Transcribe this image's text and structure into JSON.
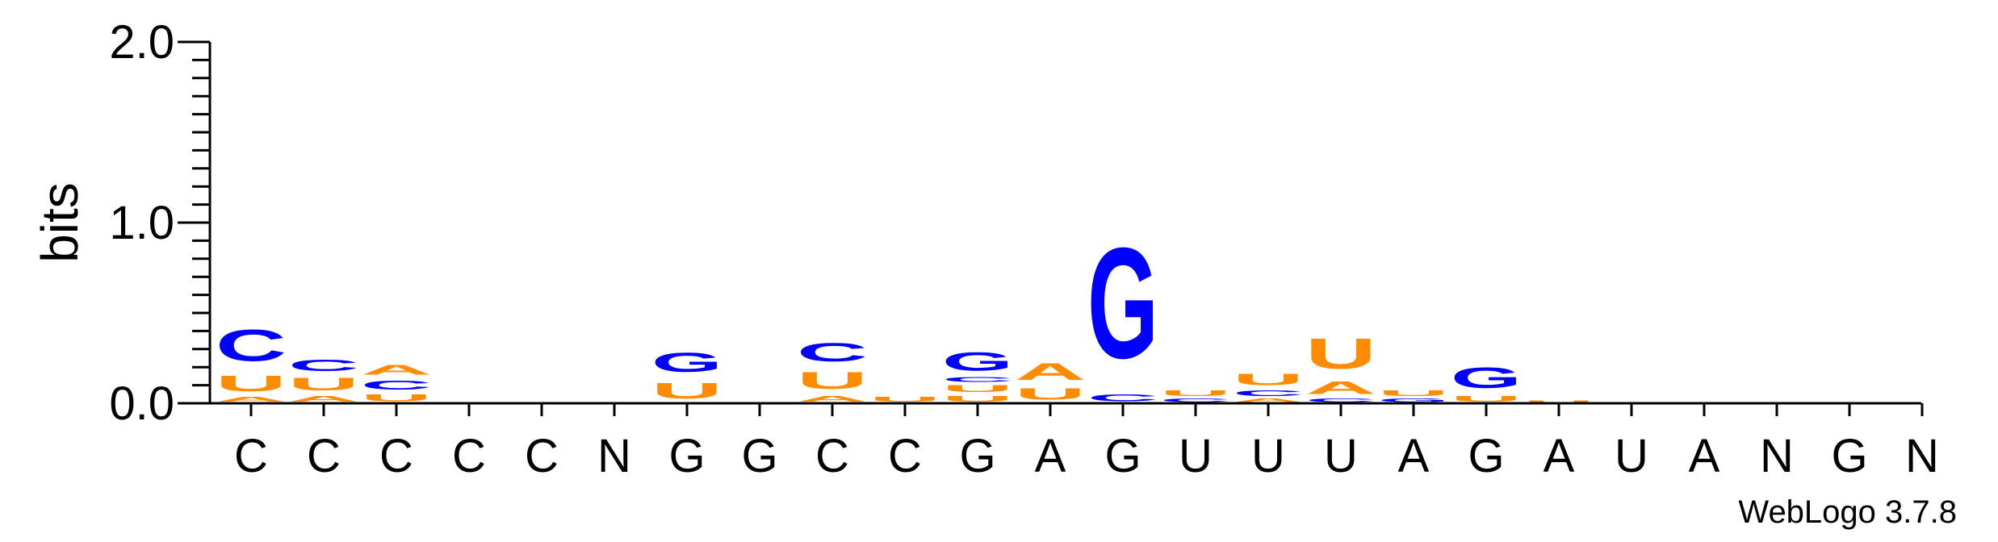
{
  "chart_data": {
    "type": "sequence-logo",
    "ylabel": "bits",
    "ylim": [
      0,
      2.0
    ],
    "yticks": [
      "0.0",
      "1.0",
      "2.0"
    ],
    "footer": "WebLogo 3.7.8",
    "colors": {
      "C": "#0000ff",
      "G": "#0000ff",
      "U": "#ff8c00",
      "A": "#ff8c00"
    },
    "positions": [
      {
        "label": "C",
        "stack": [
          [
            "A",
            0.04
          ],
          [
            "U",
            0.14
          ],
          [
            "C",
            0.28
          ]
        ]
      },
      {
        "label": "C",
        "stack": [
          [
            "A",
            0.05
          ],
          [
            "U",
            0.11
          ],
          [
            "C",
            0.1
          ]
        ]
      },
      {
        "label": "C",
        "stack": [
          [
            "U",
            0.06
          ],
          [
            "C",
            0.08
          ],
          [
            "A",
            0.09
          ]
        ]
      },
      {
        "label": "C",
        "stack": []
      },
      {
        "label": "C",
        "stack": []
      },
      {
        "label": "N",
        "stack": []
      },
      {
        "label": "G",
        "stack": [
          [
            "U",
            0.14
          ],
          [
            "G",
            0.17
          ]
        ]
      },
      {
        "label": "G",
        "stack": []
      },
      {
        "label": "C",
        "stack": [
          [
            "A",
            0.05
          ],
          [
            "U",
            0.15
          ],
          [
            "C",
            0.16
          ]
        ]
      },
      {
        "label": "C",
        "stack": [
          [
            "U",
            0.04
          ]
        ]
      },
      {
        "label": "G",
        "stack": [
          [
            "U",
            0.05
          ],
          [
            "U",
            0.06
          ],
          [
            "C",
            0.04
          ],
          [
            "G",
            0.16
          ]
        ]
      },
      {
        "label": "A",
        "stack": [
          [
            "U",
            0.1
          ],
          [
            "A",
            0.15
          ]
        ]
      },
      {
        "label": "G",
        "stack": [
          [
            "C",
            0.06
          ],
          [
            "G",
            0.98
          ]
        ]
      },
      {
        "label": "U",
        "stack": [
          [
            "C",
            0.03
          ],
          [
            "U",
            0.05
          ]
        ]
      },
      {
        "label": "U",
        "stack": [
          [
            "A",
            0.03
          ],
          [
            "C",
            0.05
          ],
          [
            "U",
            0.1
          ]
        ]
      },
      {
        "label": "U",
        "stack": [
          [
            "C",
            0.03
          ],
          [
            "A",
            0.11
          ],
          [
            "U",
            0.27
          ]
        ]
      },
      {
        "label": "A",
        "stack": [
          [
            "G",
            0.03
          ],
          [
            "U",
            0.05
          ]
        ]
      },
      {
        "label": "G",
        "stack": [
          [
            "U",
            0.05
          ],
          [
            "G",
            0.18
          ]
        ]
      },
      {
        "label": "A",
        "stack": [
          [
            "U",
            0.02
          ]
        ]
      },
      {
        "label": "U",
        "stack": []
      },
      {
        "label": "A",
        "stack": []
      },
      {
        "label": "N",
        "stack": []
      },
      {
        "label": "G",
        "stack": []
      },
      {
        "label": "N",
        "stack": []
      }
    ]
  }
}
